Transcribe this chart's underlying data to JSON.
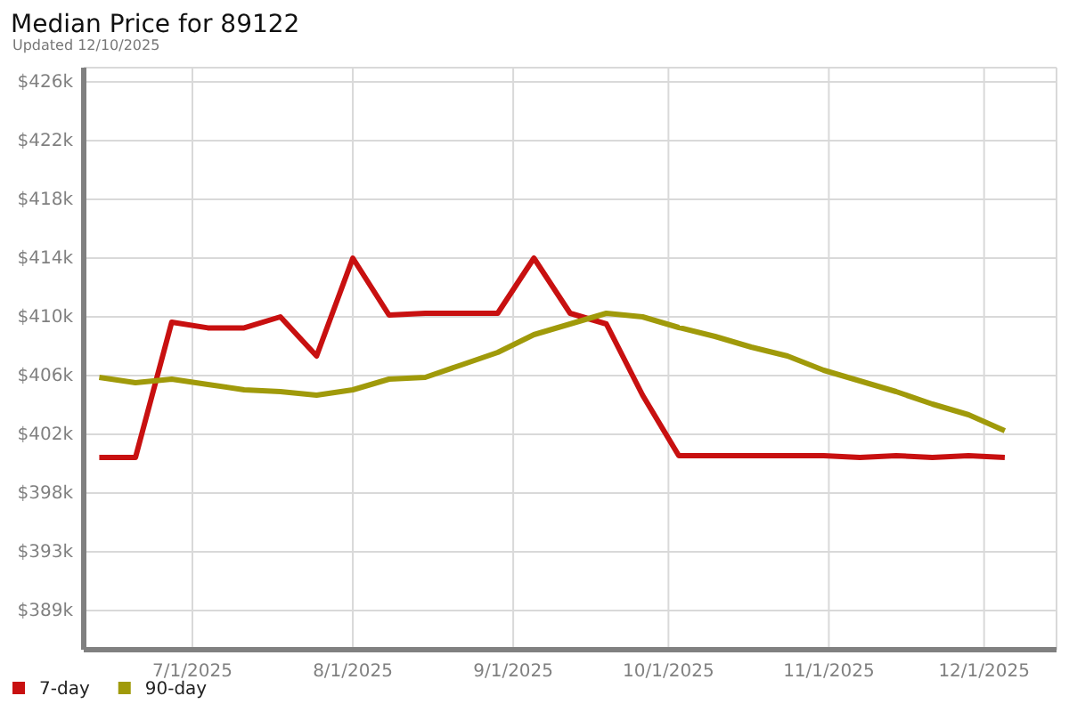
{
  "chart_data": {
    "type": "line",
    "title": "Median Price for 89122",
    "subtitle": "Updated 12/10/2025",
    "x": [
      "2025-06-13",
      "2025-06-20",
      "2025-06-27",
      "2025-07-04",
      "2025-07-11",
      "2025-07-18",
      "2025-07-25",
      "2025-08-01",
      "2025-08-08",
      "2025-08-15",
      "2025-08-22",
      "2025-08-29",
      "2025-09-05",
      "2025-09-12",
      "2025-09-19",
      "2025-09-26",
      "2025-10-03",
      "2025-10-10",
      "2025-10-17",
      "2025-10-24",
      "2025-10-31",
      "2025-11-07",
      "2025-11-14",
      "2025-11-21",
      "2025-11-28",
      "2025-12-05"
    ],
    "series": [
      {
        "name": "7-day",
        "color": "#c81010",
        "values": [
          400000,
          400000,
          409500,
          409100,
          409100,
          409875,
          407125,
          414000,
          410000,
          410125,
          410125,
          410125,
          414000,
          410125,
          409375,
          404375,
          400125,
          400125,
          400125,
          400125,
          400125,
          400000,
          400125,
          400000,
          400125,
          400000
        ]
      },
      {
        "name": "90-day",
        "color": "#a09a0a",
        "values": [
          405625,
          405250,
          405500,
          405125,
          404750,
          404625,
          404375,
          404750,
          405500,
          405625,
          406500,
          407375,
          408625,
          409375,
          410125,
          409875,
          409125,
          408500,
          407750,
          407125,
          406125,
          405375,
          404625,
          403750,
          403000,
          401875
        ]
      }
    ],
    "xlim": [
      "2025-06-10",
      "2025-12-15"
    ],
    "xticks": [
      {
        "value": "2025-07-01",
        "label": "7/1/2025"
      },
      {
        "value": "2025-08-01",
        "label": "8/1/2025"
      },
      {
        "value": "2025-09-01",
        "label": "9/1/2025"
      },
      {
        "value": "2025-10-01",
        "label": "10/1/2025"
      },
      {
        "value": "2025-11-01",
        "label": "11/1/2025"
      },
      {
        "value": "2025-12-01",
        "label": "12/1/2025"
      }
    ],
    "ylim": [
      386500,
      427375
    ],
    "yticks": [
      {
        "value": 389250,
        "label": "$389k"
      },
      {
        "value": 393375,
        "label": "$393k"
      },
      {
        "value": 397500,
        "label": "$398k"
      },
      {
        "value": 401625,
        "label": "$402k"
      },
      {
        "value": 405750,
        "label": "$406k"
      },
      {
        "value": 409875,
        "label": "$410k"
      },
      {
        "value": 414000,
        "label": "$414k"
      },
      {
        "value": 418125,
        "label": "$418k"
      },
      {
        "value": 422250,
        "label": "$422k"
      },
      {
        "value": 426375,
        "label": "$426k"
      }
    ],
    "grid": true,
    "legend": "bottom left",
    "marker": "none",
    "line_style": "solid"
  }
}
